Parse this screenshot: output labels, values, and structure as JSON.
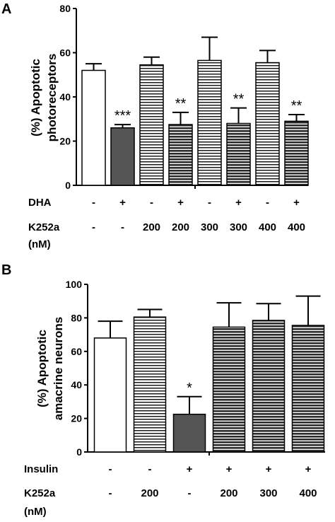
{
  "chart_data": [
    {
      "type": "bar",
      "panel_label": "A",
      "ylabel_line1": "(%) Apoptotic",
      "ylabel_line2": "photoreceptors",
      "ylim": [
        0,
        80
      ],
      "yticks": [
        "0",
        "20",
        "40",
        "60",
        "80"
      ],
      "bars": [
        {
          "value": 52,
          "error": 3,
          "fill": "white",
          "sig": ""
        },
        {
          "value": 26,
          "error": 1.5,
          "fill": "dark",
          "sig": "***"
        },
        {
          "value": 54.5,
          "error": 3.5,
          "fill": "hlines-light",
          "sig": ""
        },
        {
          "value": 27.5,
          "error": 5.5,
          "fill": "hlines-dark",
          "sig": "**"
        },
        {
          "value": 56.5,
          "error": 10.5,
          "fill": "hlines-light",
          "sig": ""
        },
        {
          "value": 28,
          "error": 7,
          "fill": "hlines-dark",
          "sig": "**"
        },
        {
          "value": 55.5,
          "error": 5.5,
          "fill": "hlines-light",
          "sig": ""
        },
        {
          "value": 29,
          "error": 3,
          "fill": "hlines-dark",
          "sig": "**"
        }
      ],
      "condition_rows": [
        {
          "label": "DHA",
          "values": [
            "-",
            "+",
            "-",
            "+",
            "-",
            "+",
            "-",
            "+"
          ]
        },
        {
          "label": "K252a",
          "values": [
            "-",
            "-",
            "200",
            "200",
            "300",
            "300",
            "400",
            "400"
          ]
        },
        {
          "label": "(nM)",
          "values": []
        }
      ]
    },
    {
      "type": "bar",
      "panel_label": "B",
      "ylabel_line1": "(%) Apoptotic",
      "ylabel_line2": "amacrine neurons",
      "ylim": [
        0,
        100
      ],
      "yticks": [
        "0",
        "20",
        "40",
        "60",
        "80",
        "100"
      ],
      "bars": [
        {
          "value": 68,
          "error": 10,
          "fill": "white",
          "sig": ""
        },
        {
          "value": 80.5,
          "error": 4.5,
          "fill": "hlines-light",
          "sig": ""
        },
        {
          "value": 22.5,
          "error": 10.5,
          "fill": "dark",
          "sig": "*"
        },
        {
          "value": 74.5,
          "error": 14.5,
          "fill": "hlines-dark",
          "sig": ""
        },
        {
          "value": 78.5,
          "error": 10,
          "fill": "hlines-dark",
          "sig": ""
        },
        {
          "value": 75.5,
          "error": 17.5,
          "fill": "hlines-dark",
          "sig": ""
        }
      ],
      "condition_rows": [
        {
          "label": "Insulin",
          "values": [
            "-",
            "-",
            "+",
            "+",
            "+",
            "+"
          ]
        },
        {
          "label": "K252a",
          "values": [
            "-",
            "200",
            "-",
            "200",
            "300",
            "400"
          ]
        },
        {
          "label": "(nM)",
          "values": []
        }
      ]
    }
  ]
}
